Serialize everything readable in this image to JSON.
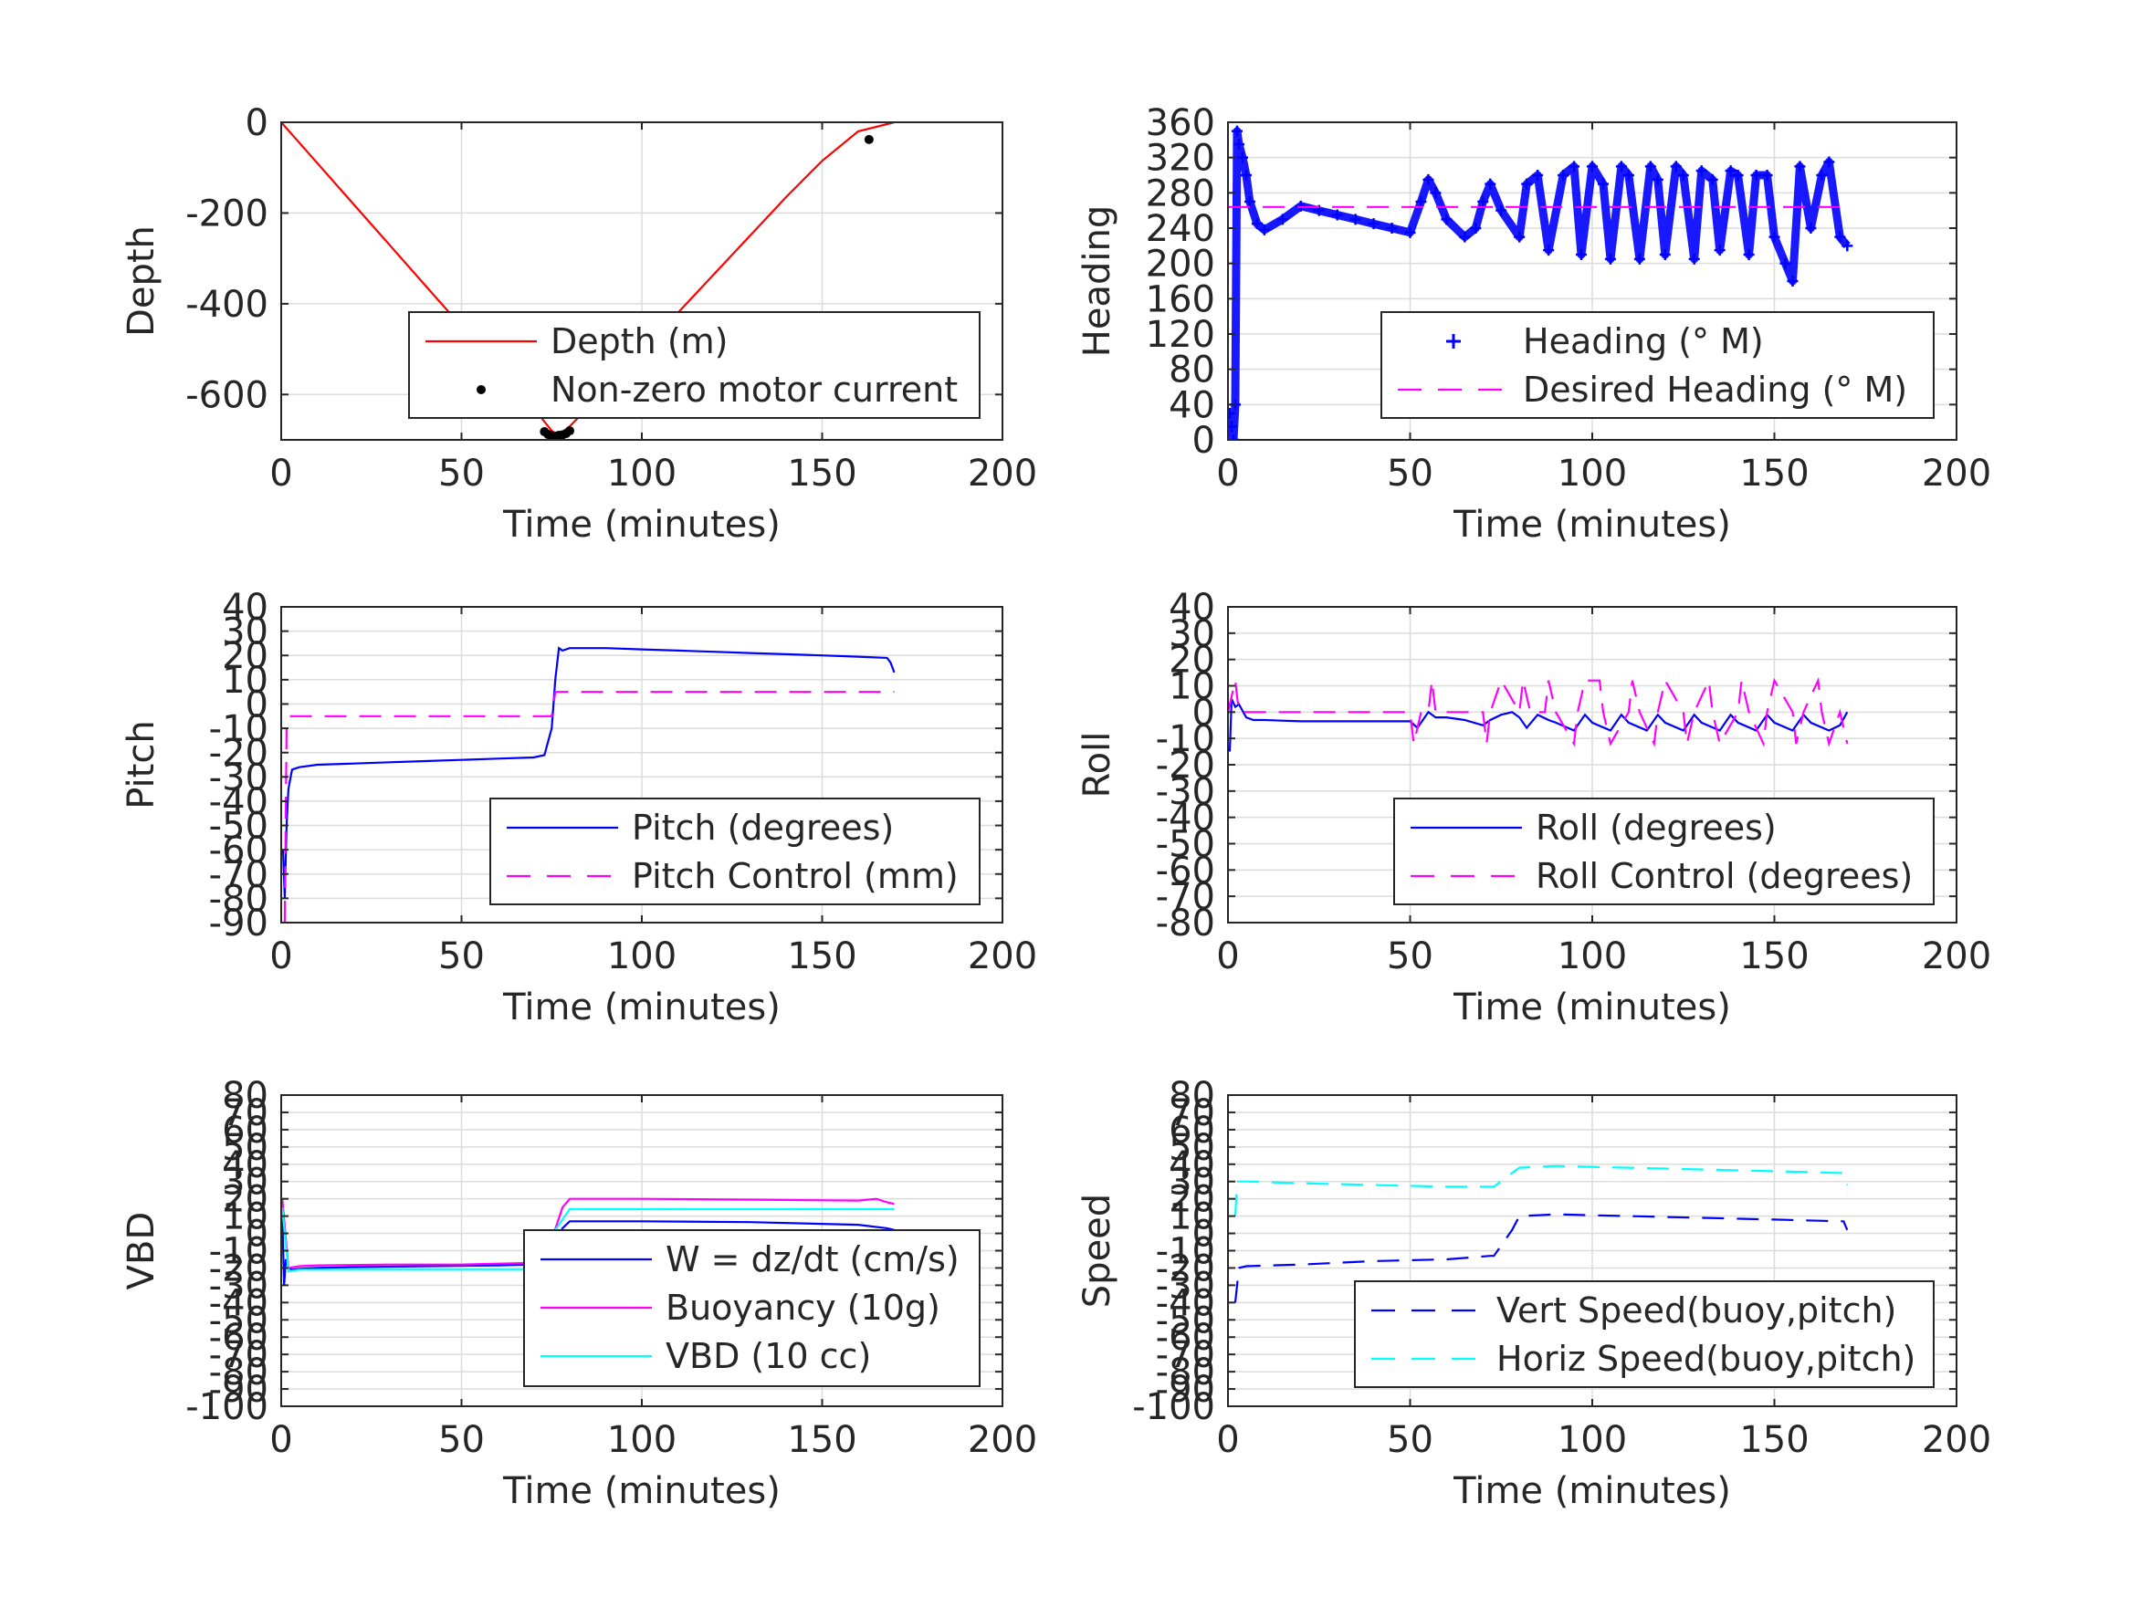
{
  "chart_data": [
    {
      "type": "line",
      "xlabel": "Time (minutes)",
      "ylabel": "Depth",
      "xlim": [
        0,
        200
      ],
      "ylim": [
        -700,
        0
      ],
      "xticks": [
        0,
        50,
        100,
        150,
        200
      ],
      "yticks": [
        0,
        -200,
        -400,
        -600
      ],
      "grid": true,
      "legend_position": "bottom-right",
      "series": [
        {
          "name": "Depth (m)",
          "style": "solid",
          "color": "#ff0000",
          "x": [
            0,
            10,
            20,
            30,
            40,
            50,
            60,
            70,
            75,
            77,
            80,
            90,
            100,
            110,
            120,
            130,
            140,
            150,
            160,
            170
          ],
          "y": [
            0,
            -90,
            -180,
            -270,
            -360,
            -450,
            -540,
            -630,
            -680,
            -690,
            -670,
            -590,
            -505,
            -420,
            -335,
            -250,
            -165,
            -85,
            -20,
            0
          ]
        },
        {
          "name": "Non-zero motor current",
          "style": "dots",
          "color": "#000000",
          "x": [
            73,
            74,
            75,
            76,
            77,
            78,
            79,
            80,
            163
          ],
          "y": [
            -682,
            -688,
            -691,
            -692,
            -690,
            -689,
            -686,
            -680,
            -38
          ]
        }
      ]
    },
    {
      "type": "line",
      "xlabel": "Time (minutes)",
      "ylabel": "Heading",
      "xlim": [
        0,
        200
      ],
      "ylim": [
        0,
        360
      ],
      "xticks": [
        0,
        50,
        100,
        150,
        200
      ],
      "yticks": [
        0,
        40,
        80,
        120,
        160,
        200,
        240,
        280,
        320,
        360
      ],
      "grid": true,
      "legend_position": "bottom-right",
      "series": [
        {
          "name": "Heading (° M)",
          "style": "plus",
          "color": "#0000ff",
          "x": [
            0.5,
            1,
            1.5,
            2,
            2.5,
            3,
            4,
            5,
            6,
            8,
            10,
            15,
            20,
            25,
            30,
            35,
            40,
            45,
            50,
            53,
            55,
            57,
            60,
            65,
            68,
            70,
            72,
            75,
            80,
            82,
            85,
            88,
            92,
            95,
            97,
            100,
            103,
            105,
            108,
            110,
            113,
            116,
            118,
            120,
            123,
            125,
            128,
            130,
            133,
            135,
            138,
            140,
            143,
            145,
            148,
            150,
            153,
            155,
            157,
            160,
            163,
            165,
            168,
            170
          ],
          "y": [
            30,
            15,
            0,
            40,
            350,
            335,
            320,
            300,
            270,
            245,
            238,
            250,
            265,
            260,
            255,
            250,
            245,
            240,
            235,
            270,
            295,
            280,
            250,
            230,
            240,
            270,
            290,
            260,
            230,
            290,
            300,
            215,
            300,
            310,
            210,
            310,
            290,
            205,
            310,
            300,
            205,
            310,
            295,
            210,
            310,
            300,
            205,
            305,
            295,
            215,
            305,
            300,
            210,
            300,
            300,
            230,
            200,
            180,
            310,
            240,
            300,
            315,
            230,
            220
          ]
        },
        {
          "name": "Desired Heading (° M)",
          "style": "dashed",
          "color": "#ff00ff",
          "x": [
            0,
            170
          ],
          "y": [
            264,
            264
          ]
        }
      ]
    },
    {
      "type": "line",
      "xlabel": "Time (minutes)",
      "ylabel": "Pitch",
      "xlim": [
        0,
        200
      ],
      "ylim": [
        -90,
        40
      ],
      "xticks": [
        0,
        50,
        100,
        150,
        200
      ],
      "yticks": [
        40,
        30,
        20,
        10,
        0,
        -10,
        -20,
        -30,
        -40,
        -50,
        -60,
        -70,
        -80,
        -90
      ],
      "grid": true,
      "legend_position": "bottom-right",
      "series": [
        {
          "name": "Pitch (degrees)",
          "style": "solid",
          "color": "#0000ff",
          "x": [
            0.5,
            1,
            1.5,
            2,
            3,
            5,
            10,
            20,
            30,
            40,
            50,
            60,
            70,
            73,
            75,
            76,
            77,
            78,
            80,
            90,
            100,
            110,
            120,
            130,
            140,
            150,
            160,
            168,
            169,
            170
          ],
          "y": [
            -60,
            -80,
            -50,
            -35,
            -27,
            -26,
            -25,
            -24.5,
            -24,
            -23.5,
            -23,
            -22.5,
            -22,
            -21,
            -10,
            10,
            23,
            22,
            23,
            23,
            22.5,
            22,
            21.5,
            21,
            20.5,
            20,
            19.5,
            19,
            17,
            13
          ]
        },
        {
          "name": "Pitch Control (mm)",
          "style": "dashed",
          "color": "#ff00ff",
          "x": [
            1,
            1.5,
            2,
            75,
            76,
            77,
            170
          ],
          "y": [
            -90,
            -10,
            -5,
            -5,
            5,
            5,
            5
          ]
        }
      ]
    },
    {
      "type": "line",
      "xlabel": "Time (minutes)",
      "ylabel": "Roll",
      "xlim": [
        0,
        200
      ],
      "ylim": [
        -80,
        40
      ],
      "xticks": [
        0,
        50,
        100,
        150,
        200
      ],
      "yticks": [
        40,
        30,
        20,
        10,
        0,
        -10,
        -20,
        -30,
        -40,
        -50,
        -60,
        -70,
        -80
      ],
      "grid": true,
      "legend_position": "bottom-right",
      "series": [
        {
          "name": "Roll (degrees)",
          "style": "solid",
          "color": "#0000ff",
          "x": [
            0.5,
            1,
            2,
            3,
            5,
            7,
            10,
            20,
            30,
            40,
            50,
            52,
            55,
            57,
            60,
            65,
            70,
            72,
            75,
            78,
            80,
            82,
            85,
            88,
            90,
            95,
            98,
            100,
            105,
            108,
            110,
            115,
            118,
            120,
            125,
            128,
            130,
            135,
            138,
            140,
            145,
            148,
            150,
            155,
            158,
            160,
            165,
            168,
            170
          ],
          "y": [
            -15,
            5,
            2,
            3,
            -2,
            -3,
            -3,
            -3.5,
            -3.5,
            -3.5,
            -3.5,
            -6,
            0,
            -2,
            -2,
            -3,
            -5,
            -3,
            -1,
            0,
            -2,
            -6,
            -1,
            -3,
            -4,
            -7,
            -1,
            -4,
            -7,
            -1,
            -4,
            -7,
            -1,
            -4,
            -7,
            -1,
            -4,
            -7,
            -1,
            -4,
            -7,
            -1,
            -4,
            -7,
            -1,
            -4,
            -7,
            -5,
            0
          ]
        },
        {
          "name": "Roll Control (degrees)",
          "style": "dashed",
          "color": "#ff00ff",
          "x": [
            0,
            2,
            3,
            5,
            50,
            51,
            53,
            55,
            56,
            57,
            70,
            71,
            72,
            75,
            80,
            81,
            83,
            87,
            88,
            90,
            95,
            96,
            98,
            102,
            103,
            105,
            110,
            111,
            113,
            117,
            118,
            120,
            125,
            126,
            128,
            132,
            133,
            135,
            140,
            141,
            143,
            147,
            148,
            150,
            155,
            156,
            158,
            162,
            163,
            165,
            168,
            170
          ],
          "y": [
            0,
            12,
            0,
            0,
            0,
            -12,
            0,
            0,
            12,
            0,
            0,
            -12,
            0,
            12,
            0,
            12,
            0,
            0,
            12,
            0,
            -12,
            0,
            12,
            12,
            0,
            -12,
            0,
            12,
            0,
            -12,
            0,
            12,
            0,
            -12,
            0,
            12,
            0,
            -12,
            0,
            12,
            0,
            -12,
            0,
            12,
            0,
            -12,
            0,
            12,
            0,
            -12,
            0,
            -12
          ]
        }
      ]
    },
    {
      "type": "line",
      "xlabel": "Time (minutes)",
      "ylabel": "VBD",
      "xlim": [
        0,
        200
      ],
      "ylim": [
        -100,
        80
      ],
      "xticks": [
        0,
        50,
        100,
        150,
        200
      ],
      "yticks": [
        80,
        70,
        60,
        50,
        40,
        30,
        20,
        10,
        0,
        -10,
        -20,
        -30,
        -40,
        -50,
        -60,
        -70,
        -80,
        -90,
        -100
      ],
      "grid": true,
      "legend_position": "bottom-right",
      "series": [
        {
          "name": "W = dz/dt (cm/s)",
          "style": "solid",
          "color": "#0000ff",
          "x": [
            0.3,
            0.8,
            1.3,
            2,
            3,
            5,
            10,
            20,
            40,
            60,
            70,
            73,
            75,
            78,
            80,
            100,
            130,
            160,
            168,
            170
          ],
          "y": [
            10,
            -30,
            -15,
            -20,
            -21,
            -20.5,
            -20,
            -19.5,
            -19,
            -18.5,
            -18,
            -17,
            -10,
            3,
            7,
            7,
            6.5,
            5,
            3,
            2
          ]
        },
        {
          "name": "Buoyancy (10g)",
          "style": "solid",
          "color": "#ff00ff",
          "x": [
            0.3,
            2,
            5,
            10,
            30,
            50,
            70,
            74,
            78,
            80,
            100,
            130,
            160,
            165,
            168,
            170
          ],
          "y": [
            20,
            -20,
            -19,
            -18.5,
            -18,
            -18,
            -17,
            -10,
            15,
            20,
            20,
            19.5,
            19,
            20,
            18,
            17
          ]
        },
        {
          "name": "VBD (10 cc)",
          "style": "solid",
          "color": "#00ffff",
          "x": [
            0.3,
            2,
            5,
            30,
            50,
            72,
            73,
            76,
            80,
            100,
            130,
            160,
            170
          ],
          "y": [
            15,
            -22,
            -21,
            -21,
            -21,
            -21,
            -20,
            2,
            14,
            14,
            14,
            14,
            14
          ]
        }
      ]
    },
    {
      "type": "line",
      "xlabel": "Time (minutes)",
      "ylabel": "Speed",
      "xlim": [
        0,
        200
      ],
      "ylim": [
        -100,
        80
      ],
      "xticks": [
        0,
        50,
        100,
        150,
        200
      ],
      "yticks": [
        80,
        70,
        60,
        50,
        40,
        30,
        20,
        10,
        0,
        -10,
        -20,
        -30,
        -40,
        -50,
        -60,
        -70,
        -80,
        -90,
        -100
      ],
      "grid": true,
      "legend_position": "bottom-right",
      "series": [
        {
          "name": "Vert Speed(buoy,pitch)",
          "style": "dashed",
          "color": "#0000ff",
          "x": [
            2,
            3,
            5,
            20,
            40,
            60,
            72,
            73,
            78,
            80,
            90,
            110,
            130,
            150,
            168,
            169,
            170
          ],
          "y": [
            -40,
            -20,
            -19,
            -18,
            -16,
            -15,
            -13,
            -13,
            2,
            10,
            11,
            10,
            9,
            8,
            7,
            7,
            2
          ]
        },
        {
          "name": "Horiz Speed(buoy,pitch)",
          "style": "dashed",
          "color": "#00ffff",
          "x": [
            2,
            2.5,
            5,
            20,
            40,
            60,
            72,
            73,
            78,
            80,
            90,
            110,
            130,
            150,
            168,
            169,
            170
          ],
          "y": [
            10,
            30,
            30,
            29,
            28,
            27,
            27,
            27,
            35,
            38,
            39,
            38,
            37,
            36,
            35,
            35,
            28
          ]
        }
      ]
    }
  ]
}
